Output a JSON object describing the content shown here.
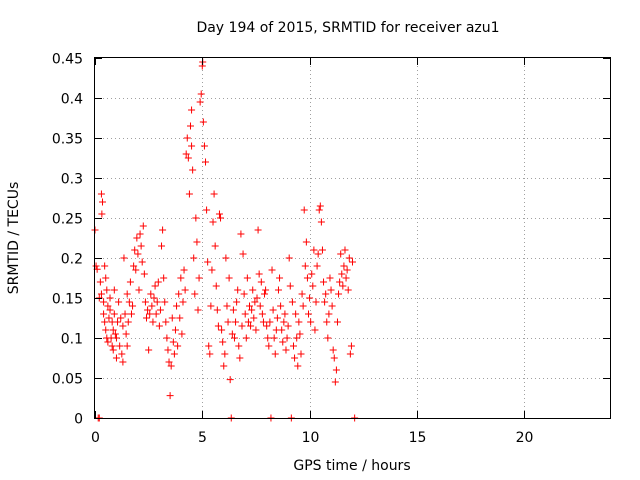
{
  "chart_data": {
    "type": "scatter",
    "title": "Day 194 of 2015, SRMTID for receiver azu1",
    "xlabel": "GPS time / hours",
    "ylabel": "SRMTID / TECUs",
    "xlim": [
      0,
      24
    ],
    "ylim": [
      0,
      0.45
    ],
    "xticks": [
      0,
      5,
      10,
      15,
      20
    ],
    "xtick_labels": [
      "0",
      "5",
      "10",
      "15",
      "20"
    ],
    "yticks": [
      0,
      0.05,
      0.1,
      0.15,
      0.2,
      0.25,
      0.3,
      0.35,
      0.4,
      0.45
    ],
    "ytick_labels": [
      "0",
      "0.05",
      "0.1",
      "0.15",
      "0.2",
      "0.25",
      "0.3",
      "0.35",
      "0.4",
      "0.45"
    ],
    "grid": true,
    "marker": "+",
    "color": "#ff0000",
    "series": [
      {
        "name": "SRMTID",
        "points": [
          [
            0.0,
            0.235
          ],
          [
            0.05,
            0.19
          ],
          [
            0.1,
            0.186
          ],
          [
            0.15,
            0.0
          ],
          [
            0.2,
            0.0
          ],
          [
            0.2,
            0.15
          ],
          [
            0.25,
            0.17
          ],
          [
            0.3,
            0.155
          ],
          [
            0.3,
            0.28
          ],
          [
            0.32,
            0.255
          ],
          [
            0.35,
            0.27
          ],
          [
            0.4,
            0.145
          ],
          [
            0.4,
            0.13
          ],
          [
            0.45,
            0.12
          ],
          [
            0.45,
            0.19
          ],
          [
            0.5,
            0.11
          ],
          [
            0.5,
            0.175
          ],
          [
            0.55,
            0.1
          ],
          [
            0.55,
            0.16
          ],
          [
            0.6,
            0.095
          ],
          [
            0.6,
            0.14
          ],
          [
            0.65,
            0.125
          ],
          [
            0.7,
            0.135
          ],
          [
            0.7,
            0.15
          ],
          [
            0.75,
            0.1
          ],
          [
            0.8,
            0.09
          ],
          [
            0.8,
            0.12
          ],
          [
            0.85,
            0.085
          ],
          [
            0.85,
            0.11
          ],
          [
            0.9,
            0.13
          ],
          [
            0.9,
            0.16
          ],
          [
            0.95,
            0.105
          ],
          [
            1.0,
            0.075
          ],
          [
            1.0,
            0.1
          ],
          [
            1.05,
            0.12
          ],
          [
            1.1,
            0.145
          ],
          [
            1.15,
            0.09
          ],
          [
            1.2,
            0.125
          ],
          [
            1.25,
            0.08
          ],
          [
            1.3,
            0.07
          ],
          [
            1.3,
            0.115
          ],
          [
            1.35,
            0.2
          ],
          [
            1.4,
            0.13
          ],
          [
            1.45,
            0.105
          ],
          [
            1.5,
            0.09
          ],
          [
            1.5,
            0.155
          ],
          [
            1.55,
            0.12
          ],
          [
            1.6,
            0.145
          ],
          [
            1.65,
            0.17
          ],
          [
            1.7,
            0.13
          ],
          [
            1.75,
            0.14
          ],
          [
            1.8,
            0.19
          ],
          [
            1.85,
            0.21
          ],
          [
            1.9,
            0.185
          ],
          [
            1.95,
            0.225
          ],
          [
            2.0,
            0.205
          ],
          [
            2.05,
            0.16
          ],
          [
            2.1,
            0.23
          ],
          [
            2.15,
            0.215
          ],
          [
            2.2,
            0.195
          ],
          [
            2.25,
            0.24
          ],
          [
            2.3,
            0.18
          ],
          [
            2.35,
            0.145
          ],
          [
            2.4,
            0.125
          ],
          [
            2.45,
            0.135
          ],
          [
            2.5,
            0.085
          ],
          [
            2.55,
            0.13
          ],
          [
            2.6,
            0.155
          ],
          [
            2.65,
            0.14
          ],
          [
            2.7,
            0.12
          ],
          [
            2.75,
            0.15
          ],
          [
            2.8,
            0.165
          ],
          [
            2.85,
            0.13
          ],
          [
            2.9,
            0.145
          ],
          [
            2.95,
            0.17
          ],
          [
            3.0,
            0.115
          ],
          [
            3.05,
            0.135
          ],
          [
            3.1,
            0.215
          ],
          [
            3.15,
            0.235
          ],
          [
            3.2,
            0.175
          ],
          [
            3.25,
            0.145
          ],
          [
            3.3,
            0.12
          ],
          [
            3.35,
            0.1
          ],
          [
            3.4,
            0.085
          ],
          [
            3.45,
            0.07
          ],
          [
            3.5,
            0.028
          ],
          [
            3.55,
            0.065
          ],
          [
            3.6,
            0.125
          ],
          [
            3.65,
            0.095
          ],
          [
            3.7,
            0.08
          ],
          [
            3.75,
            0.11
          ],
          [
            3.8,
            0.14
          ],
          [
            3.85,
            0.09
          ],
          [
            3.9,
            0.155
          ],
          [
            3.95,
            0.125
          ],
          [
            4.0,
            0.175
          ],
          [
            4.05,
            0.105
          ],
          [
            4.1,
            0.145
          ],
          [
            4.15,
            0.185
          ],
          [
            4.2,
            0.16
          ],
          [
            4.25,
            0.33
          ],
          [
            4.3,
            0.35
          ],
          [
            4.35,
            0.325
          ],
          [
            4.4,
            0.28
          ],
          [
            4.45,
            0.365
          ],
          [
            4.5,
            0.385
          ],
          [
            4.5,
            0.34
          ],
          [
            4.55,
            0.31
          ],
          [
            4.6,
            0.2
          ],
          [
            4.65,
            0.155
          ],
          [
            4.7,
            0.25
          ],
          [
            4.75,
            0.22
          ],
          [
            4.8,
            0.135
          ],
          [
            4.85,
            0.175
          ],
          [
            4.9,
            0.395
          ],
          [
            4.95,
            0.405
          ],
          [
            5.0,
            0.44
          ],
          [
            5.02,
            0.445
          ],
          [
            5.05,
            0.37
          ],
          [
            5.1,
            0.34
          ],
          [
            5.15,
            0.32
          ],
          [
            5.2,
            0.26
          ],
          [
            5.25,
            0.195
          ],
          [
            5.3,
            0.09
          ],
          [
            5.35,
            0.08
          ],
          [
            5.4,
            0.14
          ],
          [
            5.45,
            0.185
          ],
          [
            5.5,
            0.245
          ],
          [
            5.55,
            0.28
          ],
          [
            5.6,
            0.215
          ],
          [
            5.65,
            0.165
          ],
          [
            5.7,
            0.135
          ],
          [
            5.75,
            0.115
          ],
          [
            5.8,
            0.255
          ],
          [
            5.85,
            0.25
          ],
          [
            5.9,
            0.11
          ],
          [
            5.95,
            0.095
          ],
          [
            6.0,
            0.065
          ],
          [
            6.05,
            0.08
          ],
          [
            6.1,
            0.2
          ],
          [
            6.15,
            0.14
          ],
          [
            6.2,
            0.12
          ],
          [
            6.25,
            0.175
          ],
          [
            6.3,
            0.048
          ],
          [
            6.35,
            0.0
          ],
          [
            6.4,
            0.105
          ],
          [
            6.45,
            0.135
          ],
          [
            6.5,
            0.1
          ],
          [
            6.55,
            0.12
          ],
          [
            6.6,
            0.145
          ],
          [
            6.65,
            0.16
          ],
          [
            6.7,
            0.09
          ],
          [
            6.75,
            0.075
          ],
          [
            6.8,
            0.23
          ],
          [
            6.85,
            0.115
          ],
          [
            6.9,
            0.205
          ],
          [
            6.95,
            0.155
          ],
          [
            7.0,
            0.13
          ],
          [
            7.05,
            0.1
          ],
          [
            7.1,
            0.175
          ],
          [
            7.15,
            0.12
          ],
          [
            7.2,
            0.14
          ],
          [
            7.25,
            0.115
          ],
          [
            7.3,
            0.135
          ],
          [
            7.35,
            0.16
          ],
          [
            7.4,
            0.125
          ],
          [
            7.45,
            0.145
          ],
          [
            7.5,
            0.11
          ],
          [
            7.55,
            0.15
          ],
          [
            7.6,
            0.235
          ],
          [
            7.65,
            0.18
          ],
          [
            7.7,
            0.14
          ],
          [
            7.75,
            0.17
          ],
          [
            7.8,
            0.13
          ],
          [
            7.85,
            0.12
          ],
          [
            7.9,
            0.155
          ],
          [
            7.95,
            0.16
          ],
          [
            8.0,
            0.115
          ],
          [
            8.05,
            0.1
          ],
          [
            8.1,
            0.09
          ],
          [
            8.15,
            0.12
          ],
          [
            8.2,
            0.0
          ],
          [
            8.25,
            0.185
          ],
          [
            8.3,
            0.135
          ],
          [
            8.35,
            0.1
          ],
          [
            8.4,
            0.08
          ],
          [
            8.45,
            0.11
          ],
          [
            8.5,
            0.125
          ],
          [
            8.55,
            0.16
          ],
          [
            8.6,
            0.175
          ],
          [
            8.65,
            0.14
          ],
          [
            8.7,
            0.11
          ],
          [
            8.75,
            0.095
          ],
          [
            8.8,
            0.12
          ],
          [
            8.85,
            0.13
          ],
          [
            8.9,
            0.085
          ],
          [
            8.95,
            0.1
          ],
          [
            9.0,
            0.115
          ],
          [
            9.05,
            0.2
          ],
          [
            9.1,
            0.165
          ],
          [
            9.15,
            0.0
          ],
          [
            9.2,
            0.145
          ],
          [
            9.25,
            0.09
          ],
          [
            9.3,
            0.075
          ],
          [
            9.35,
            0.13
          ],
          [
            9.4,
            0.1
          ],
          [
            9.45,
            0.065
          ],
          [
            9.5,
            0.12
          ],
          [
            9.55,
            0.105
          ],
          [
            9.6,
            0.08
          ],
          [
            9.65,
            0.155
          ],
          [
            9.7,
            0.14
          ],
          [
            9.75,
            0.26
          ],
          [
            9.8,
            0.19
          ],
          [
            9.85,
            0.22
          ],
          [
            9.9,
            0.175
          ],
          [
            9.95,
            0.13
          ],
          [
            10.0,
            0.15
          ],
          [
            10.05,
            0.12
          ],
          [
            10.1,
            0.18
          ],
          [
            10.15,
            0.165
          ],
          [
            10.2,
            0.21
          ],
          [
            10.25,
            0.11
          ],
          [
            10.3,
            0.145
          ],
          [
            10.35,
            0.19
          ],
          [
            10.4,
            0.205
          ],
          [
            10.45,
            0.26
          ],
          [
            10.5,
            0.265
          ],
          [
            10.55,
            0.245
          ],
          [
            10.6,
            0.21
          ],
          [
            10.65,
            0.17
          ],
          [
            10.7,
            0.145
          ],
          [
            10.75,
            0.155
          ],
          [
            10.8,
            0.12
          ],
          [
            10.85,
            0.1
          ],
          [
            10.9,
            0.13
          ],
          [
            10.95,
            0.175
          ],
          [
            11.0,
            0.16
          ],
          [
            11.05,
            0.14
          ],
          [
            11.1,
            0.085
          ],
          [
            11.15,
            0.075
          ],
          [
            11.2,
            0.045
          ],
          [
            11.25,
            0.06
          ],
          [
            11.3,
            0.12
          ],
          [
            11.35,
            0.155
          ],
          [
            11.4,
            0.17
          ],
          [
            11.45,
            0.205
          ],
          [
            11.5,
            0.18
          ],
          [
            11.55,
            0.165
          ],
          [
            11.6,
            0.19
          ],
          [
            11.65,
            0.21
          ],
          [
            11.7,
            0.175
          ],
          [
            11.75,
            0.185
          ],
          [
            11.8,
            0.16
          ],
          [
            11.85,
            0.2
          ],
          [
            11.9,
            0.08
          ],
          [
            11.95,
            0.09
          ],
          [
            12.0,
            0.195
          ],
          [
            12.1,
            0.0
          ]
        ]
      }
    ]
  }
}
